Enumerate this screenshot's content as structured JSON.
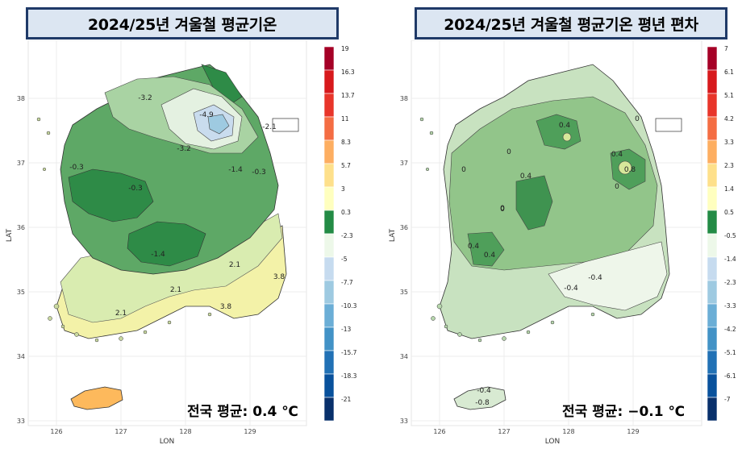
{
  "left": {
    "title": "2024/25년 겨울철 평균기온",
    "unit": "(℃)",
    "xlabel": "LON",
    "ylabel": "LAT",
    "x_ticks": [
      "126",
      "127",
      "128",
      "129"
    ],
    "y_ticks": [
      "38",
      "37",
      "36",
      "35",
      "34",
      "33"
    ],
    "legend_labels": [
      "19",
      "16.3",
      "13.7",
      "11",
      "8.3",
      "5.7",
      "3",
      "0.3",
      "-2.3",
      "-5",
      "-7.7",
      "-10.3",
      "-13",
      "-15.7",
      "-18.3",
      "-21"
    ],
    "legend_colors": [
      "#a50026",
      "#d7191c",
      "#e8352a",
      "#f46d43",
      "#fdae61",
      "#fee08b",
      "#ffffbf",
      "#238b45",
      "#edf8e9",
      "#c6dbef",
      "#9ecae1",
      "#6baed6",
      "#4292c6",
      "#2171b5",
      "#08519c",
      "#08306b"
    ],
    "contour_labels": [
      "-3.2",
      "-4.9",
      "-3.2",
      "-1.4",
      "-0.3",
      "-1.4",
      "2.1",
      "3.8",
      "2.1",
      "2.1",
      "3.8",
      "-2.1",
      "-0.3",
      "-0.3"
    ],
    "average": "전국 평균: 0.4 ℃"
  },
  "right": {
    "title": "2024/25년 겨울철 평균기온 평년 편차",
    "unit": "(℃)",
    "xlabel": "LON",
    "ylabel": "LAT",
    "x_ticks": [
      "126",
      "127",
      "128",
      "129"
    ],
    "y_ticks": [
      "38",
      "37",
      "36",
      "35",
      "34",
      "33"
    ],
    "legend_labels": [
      "7",
      "6.1",
      "5.1",
      "4.2",
      "3.3",
      "2.3",
      "1.4",
      "0.5",
      "-0.5",
      "-1.4",
      "-2.3",
      "-3.3",
      "-4.2",
      "-5.1",
      "-6.1",
      "-7"
    ],
    "legend_colors": [
      "#a50026",
      "#d7191c",
      "#e8352a",
      "#f46d43",
      "#fdae61",
      "#fee08b",
      "#ffffbf",
      "#238b45",
      "#edf8e9",
      "#c6dbef",
      "#9ecae1",
      "#6baed6",
      "#4292c6",
      "#2171b5",
      "#08519c",
      "#08306b"
    ],
    "contour_labels": [
      "0.4",
      "0",
      "0",
      "0.4",
      "0.8",
      "0",
      "0",
      "0.4",
      "0",
      "0.4",
      "0.4",
      "-0.4",
      "-0.4",
      "-0.4",
      "-0.8",
      "0"
    ],
    "average": "전국 평균: −0.1 ℃"
  }
}
